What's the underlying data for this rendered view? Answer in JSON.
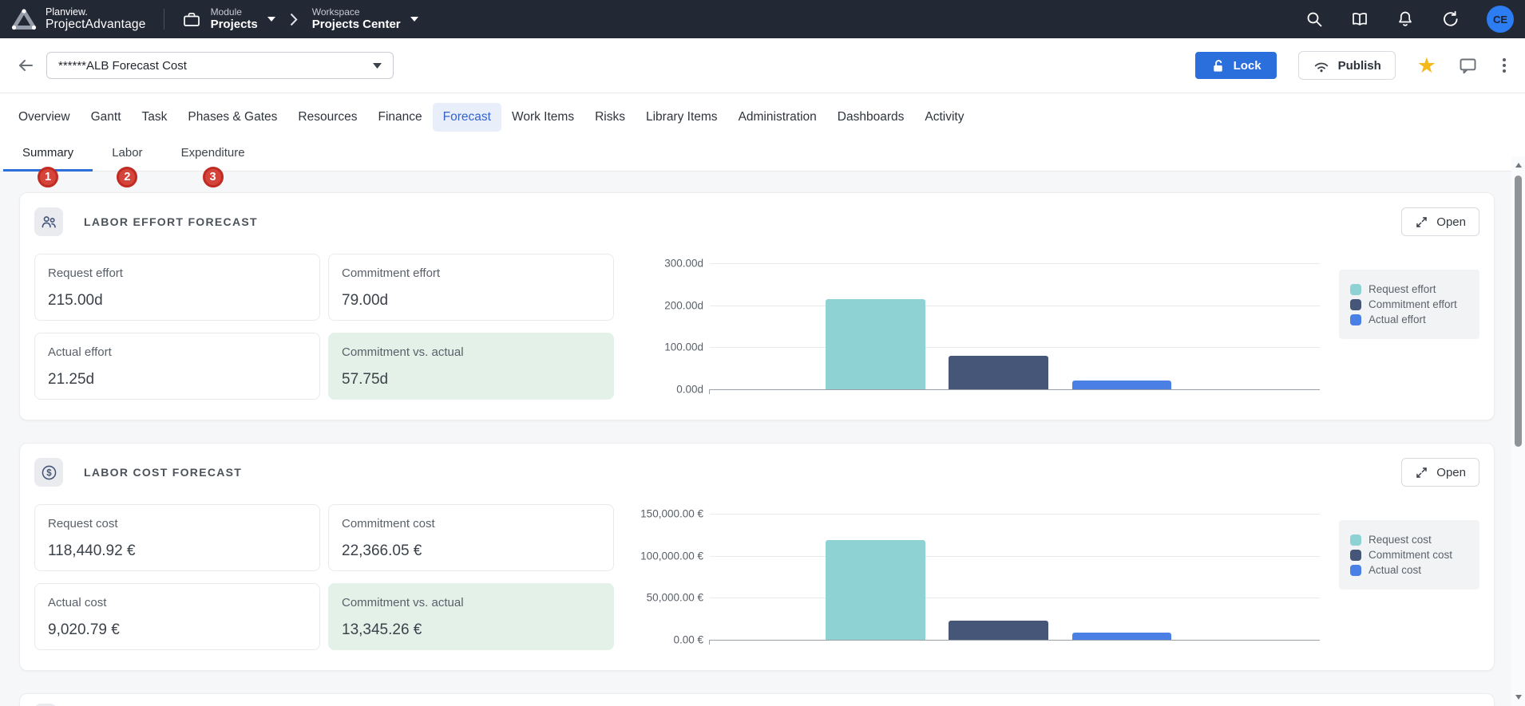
{
  "header": {
    "brand_line1": "Planview.",
    "brand_line2": "ProjectAdvantage",
    "module": {
      "label": "Module",
      "value": "Projects"
    },
    "workspace": {
      "label": "Workspace",
      "value": "Projects Center"
    },
    "icons": [
      "search-icon",
      "library-icon",
      "notifications-icon",
      "refresh-icon"
    ],
    "avatar_initials": "CE",
    "colors": {
      "bar_bg": "#222834",
      "avatar_bg": "#2C7DF1"
    }
  },
  "toolbar": {
    "title_value": "******ALB Forecast Cost",
    "lock_label": "Lock",
    "publish_label": "Publish",
    "icons": [
      "back-icon",
      "lock-icon",
      "publish-icon",
      "favorite-star-icon",
      "comment-icon",
      "kebab-menu-icon"
    ],
    "lock_color": "#2B6FDC",
    "star_color": "#F4B91D"
  },
  "tabs": [
    {
      "label": "Overview",
      "active": false
    },
    {
      "label": "Gantt",
      "active": false
    },
    {
      "label": "Task",
      "active": false
    },
    {
      "label": "Phases & Gates",
      "active": false
    },
    {
      "label": "Resources",
      "active": false
    },
    {
      "label": "Finance",
      "active": false
    },
    {
      "label": "Forecast",
      "active": true
    },
    {
      "label": "Work Items",
      "active": false
    },
    {
      "label": "Risks",
      "active": false
    },
    {
      "label": "Library Items",
      "active": false
    },
    {
      "label": "Administration",
      "active": false
    },
    {
      "label": "Dashboards",
      "active": false
    },
    {
      "label": "Activity",
      "active": false
    }
  ],
  "subtabs": [
    {
      "label": "Summary",
      "badge": "1",
      "active": true
    },
    {
      "label": "Labor",
      "badge": "2",
      "active": false
    },
    {
      "label": "Expenditure",
      "badge": "3",
      "active": false
    }
  ],
  "badge_color": "#D5443B",
  "cards": [
    {
      "icon": "team-icon",
      "title": "LABOR EFFORT FORECAST",
      "open_label": "Open",
      "metrics": [
        {
          "label": "Request effort",
          "value": "215.00d",
          "highlight": false
        },
        {
          "label": "Commitment effort",
          "value": "79.00d",
          "highlight": false
        },
        {
          "label": "Actual effort",
          "value": "21.25d",
          "highlight": false
        },
        {
          "label": "Commitment vs. actual",
          "value": "57.75d",
          "highlight": true
        }
      ]
    },
    {
      "icon": "dollar-icon",
      "title": "LABOR COST FORECAST",
      "open_label": "Open",
      "metrics": [
        {
          "label": "Request cost",
          "value": "118,440.92 €",
          "highlight": false
        },
        {
          "label": "Commitment cost",
          "value": "22,366.05 €",
          "highlight": false
        },
        {
          "label": "Actual cost",
          "value": "9,020.79 €",
          "highlight": false
        },
        {
          "label": "Commitment vs. actual",
          "value": "13,345.26 €",
          "highlight": true
        }
      ]
    }
  ],
  "chart_data": [
    {
      "type": "bar",
      "title": "Labor effort forecast",
      "series": [
        {
          "name": "Request effort",
          "value": 215.0,
          "color": "#8ED2D4"
        },
        {
          "name": "Commitment effort",
          "value": 79.0,
          "color": "#455679"
        },
        {
          "name": "Actual effort",
          "value": 21.25,
          "color": "#4A80E6"
        }
      ],
      "ylim": [
        0,
        300
      ],
      "yticks": [
        "300.00d",
        "200.00d",
        "100.00d",
        "0.00d"
      ],
      "grid": true,
      "legend_position": "right"
    },
    {
      "type": "bar",
      "title": "Labor cost forecast",
      "series": [
        {
          "name": "Request cost",
          "value": 118440.92,
          "color": "#8ED2D4"
        },
        {
          "name": "Commitment cost",
          "value": 22366.05,
          "color": "#455679"
        },
        {
          "name": "Actual cost",
          "value": 9020.79,
          "color": "#4A80E6"
        }
      ],
      "ylim": [
        0,
        150000
      ],
      "yticks": [
        "150,000.00 €",
        "100,000.00 €",
        "50,000.00 €",
        "0.00 €"
      ],
      "grid": true,
      "legend_position": "right"
    }
  ]
}
